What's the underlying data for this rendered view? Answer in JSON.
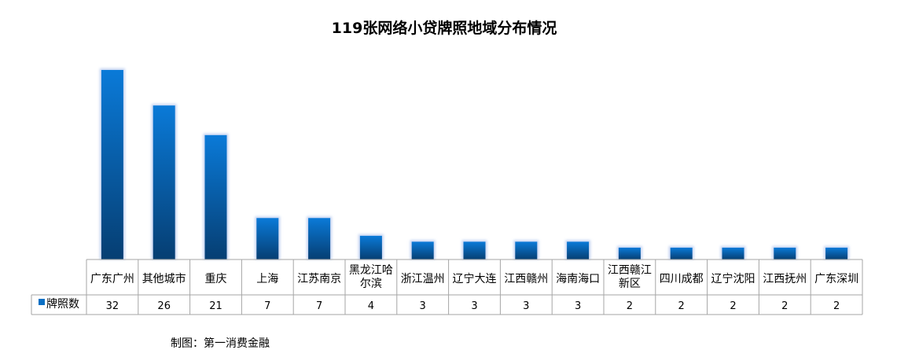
{
  "chart_data": {
    "type": "bar",
    "title": "119张网络小贷牌照地域分布情况",
    "categories": [
      "广东广州",
      "其他城市",
      "重庆",
      "上海",
      "江苏南京",
      "黑龙江哈尔滨",
      "浙江温州",
      "辽宁大连",
      "江西赣州",
      "海南海口",
      "江西赣江新区",
      "四川成都",
      "辽宁沈阳",
      "江西抚州",
      "广东深圳"
    ],
    "category_lines": [
      [
        "广东广州"
      ],
      [
        "其他城市"
      ],
      [
        "重庆"
      ],
      [
        "上海"
      ],
      [
        "江苏南京"
      ],
      [
        "黑龙江哈",
        "尔滨"
      ],
      [
        "浙江温州"
      ],
      [
        "辽宁大连"
      ],
      [
        "江西赣州"
      ],
      [
        "海南海口"
      ],
      [
        "江西赣江",
        "新区"
      ],
      [
        "四川成都"
      ],
      [
        "辽宁沈阳"
      ],
      [
        "江西抚州"
      ],
      [
        "广东深圳"
      ]
    ],
    "series": [
      {
        "name": "牌照数",
        "values": [
          32,
          26,
          21,
          7,
          7,
          4,
          3,
          3,
          3,
          3,
          2,
          2,
          2,
          2,
          2
        ]
      }
    ],
    "ylim": [
      0,
      35
    ],
    "grid": false,
    "legend": "data-table-left",
    "colors": {
      "bar_top": "#0a7ad8",
      "bar_bottom": "#063e72",
      "glow": "#c4d3f2",
      "table_border": "#a6a6a6"
    }
  },
  "source_note": "制图：第一消费金融"
}
